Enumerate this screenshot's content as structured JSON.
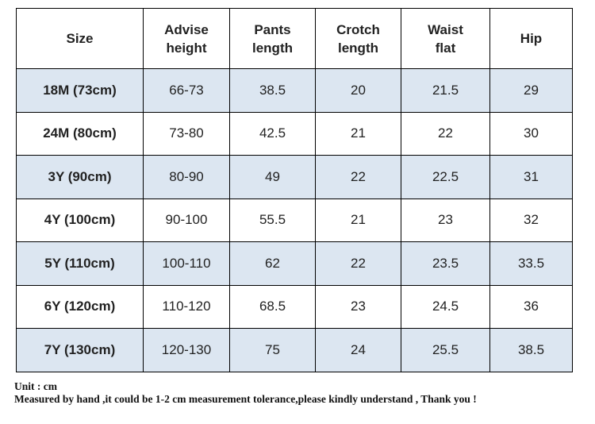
{
  "table": {
    "header": [
      "Size",
      "Advise\nheight",
      "Pants\nlength",
      "Crotch\nlength",
      "Waist\nflat",
      "Hip"
    ],
    "rows": [
      [
        "18M (73cm)",
        "66-73",
        "38.5",
        "20",
        "21.5",
        "29"
      ],
      [
        "24M (80cm)",
        "73-80",
        "42.5",
        "21",
        "22",
        "30"
      ],
      [
        "3Y (90cm)",
        "80-90",
        "49",
        "22",
        "22.5",
        "31"
      ],
      [
        "4Y (100cm)",
        "90-100",
        "55.5",
        "21",
        "23",
        "32"
      ],
      [
        "5Y (110cm)",
        "100-110",
        "62",
        "22",
        "23.5",
        "33.5"
      ],
      [
        "6Y (120cm)",
        "110-120",
        "68.5",
        "23",
        "24.5",
        "36"
      ],
      [
        "7Y (130cm)",
        "120-130",
        "75",
        "24",
        "25.5",
        "38.5"
      ]
    ]
  },
  "footer": {
    "unit": "Unit : cm",
    "note": "Measured by hand ,it could be 1-2 cm measurement tolerance,please kindly understand , Thank you !"
  }
}
